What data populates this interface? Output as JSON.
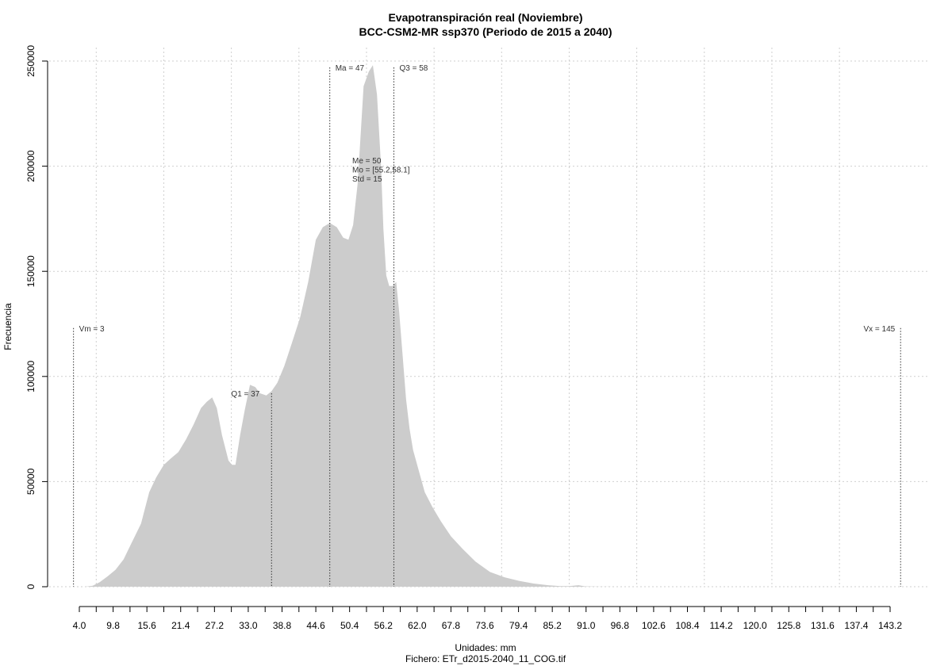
{
  "chart_data": {
    "type": "area",
    "title": "Evapotranspiración real (Noviembre)",
    "subtitle": "BCC-CSM2-MR ssp370 (Periodo de 2015 a 2040)",
    "xlabel": "Unidades: mm",
    "footer": "Fichero: ETr_d2015-2040_11_COG.tif",
    "ylabel": "Frecuencia",
    "xlim": [
      4.0,
      143.2
    ],
    "ylim": [
      0,
      250000
    ],
    "grid": true,
    "fill_color": "#cccccc",
    "x_tick_labels": [
      "4.0",
      "9.8",
      "15.6",
      "21.4",
      "27.2",
      "33.0",
      "38.8",
      "44.6",
      "50.4",
      "56.2",
      "62.0",
      "67.8",
      "73.6",
      "79.4",
      "85.2",
      "91.0",
      "96.8",
      "102.6",
      "108.4",
      "114.2",
      "120.0",
      "125.8",
      "131.6",
      "137.4",
      "143.2"
    ],
    "y_ticks": [
      0,
      50000,
      100000,
      150000,
      200000,
      250000
    ],
    "y_tick_labels": [
      "0",
      "50000",
      "100000",
      "150000",
      "200000",
      "250000"
    ],
    "x": [
      4.0,
      5.0,
      6.3,
      7.5,
      8.8,
      10.2,
      11.6,
      13.0,
      14.6,
      16.0,
      17.2,
      18.5,
      19.7,
      21.0,
      22.3,
      23.6,
      24.9,
      25.9,
      26.8,
      27.6,
      28.5,
      29.6,
      30.2,
      30.8,
      31.6,
      32.4,
      33.3,
      34.2,
      35.0,
      36.1,
      37.0,
      38.0,
      39.2,
      40.5,
      41.9,
      43.3,
      44.6,
      45.8,
      47.0,
      48.2,
      49.3,
      50.2,
      51.0,
      51.8,
      52.8,
      53.7,
      54.4,
      55.1,
      55.8,
      56.2,
      56.7,
      57.2,
      57.8,
      58.4,
      58.9,
      59.5,
      60.1,
      60.7,
      61.3,
      62.2,
      63.3,
      64.6,
      66.1,
      67.8,
      69.8,
      72.0,
      74.5,
      77.0,
      79.5,
      82.0,
      84.5,
      86.6,
      88.1,
      89.7,
      90.8,
      91.6,
      92.4,
      93.6,
      94.9,
      96.2,
      99.0,
      110.0,
      125.0,
      143.2
    ],
    "y": [
      0,
      0,
      500,
      2200,
      4800,
      8000,
      13000,
      21000,
      30000,
      45000,
      52000,
      58000,
      61000,
      64000,
      70000,
      77000,
      85000,
      88000,
      90000,
      85000,
      72000,
      60000,
      58000,
      58000,
      72000,
      84000,
      96000,
      95000,
      92000,
      91000,
      93000,
      97000,
      105000,
      116000,
      128000,
      145000,
      165000,
      171000,
      173000,
      171000,
      166000,
      165000,
      172000,
      192000,
      238000,
      245000,
      248000,
      234000,
      200000,
      170000,
      148000,
      143000,
      143000,
      145000,
      131000,
      110000,
      89000,
      75000,
      65000,
      56000,
      45000,
      38000,
      31000,
      24000,
      18000,
      12000,
      7000,
      4500,
      2800,
      1500,
      700,
      300,
      250,
      700,
      200,
      150,
      100,
      50,
      20,
      0,
      0,
      0,
      0,
      0
    ],
    "markers": [
      {
        "label": "Vm = 3",
        "x": 3.0,
        "y_top": 123000
      },
      {
        "label": "Q1 = 37",
        "x": 37.0,
        "y_top": 92000
      },
      {
        "label": "Ma = 47",
        "x": 47.0,
        "y_top": 247000
      },
      {
        "label": "Q3 = 58",
        "x": 58.0,
        "y_top": 247000
      },
      {
        "label": "Vx = 145",
        "x": 145.0,
        "y_top": 123000
      }
    ],
    "stats": [
      "Me = 50",
      "Mo = [55.2,58.1]",
      "Std = 15"
    ]
  }
}
